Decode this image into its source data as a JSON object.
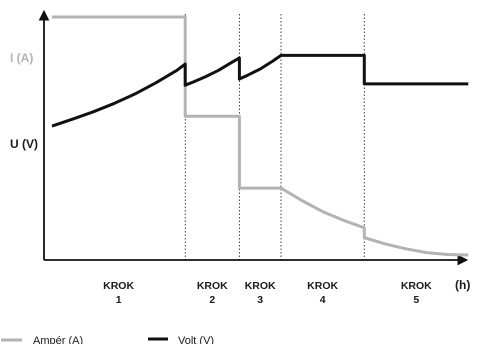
{
  "chart_data": {
    "type": "line",
    "xlabel": "(h)",
    "y_axis_labels": {
      "current": "I (A)",
      "voltage": "U (V)"
    },
    "steps": [
      {
        "label": "KROK",
        "number": "1",
        "x_start": 0.0,
        "x_end": 3.2
      },
      {
        "label": "KROK",
        "number": "2",
        "x_start": 3.2,
        "x_end": 4.5
      },
      {
        "label": "KROK",
        "number": "3",
        "x_start": 4.5,
        "x_end": 5.5
      },
      {
        "label": "KROK",
        "number": "4",
        "x_start": 5.5,
        "x_end": 7.5
      },
      {
        "label": "KROK",
        "number": "5",
        "x_start": 7.5,
        "x_end": 10.0
      }
    ],
    "xlim": [
      0,
      10.4
    ],
    "ylim": [
      0,
      10
    ],
    "series": [
      {
        "name": "Ampér (A)",
        "color": "#b3b3b3",
        "points": [
          [
            0,
            9.8
          ],
          [
            3.2,
            9.8
          ],
          [
            3.2,
            5.8
          ],
          [
            4.5,
            5.8
          ],
          [
            4.5,
            2.9
          ],
          [
            5.5,
            2.9
          ],
          [
            6,
            2.4
          ],
          [
            6.5,
            1.95
          ],
          [
            7,
            1.6
          ],
          [
            7.5,
            1.3
          ],
          [
            7.5,
            0.9
          ],
          [
            8,
            0.65
          ],
          [
            8.5,
            0.45
          ],
          [
            9,
            0.3
          ],
          [
            9.5,
            0.22
          ],
          [
            10,
            0.2
          ]
        ]
      },
      {
        "name": "Volt (V)",
        "color": "#111111",
        "points": [
          [
            0,
            5.4
          ],
          [
            0.5,
            5.68
          ],
          [
            1,
            5.98
          ],
          [
            1.5,
            6.32
          ],
          [
            2,
            6.7
          ],
          [
            2.5,
            7.15
          ],
          [
            3,
            7.65
          ],
          [
            3.2,
            7.9
          ],
          [
            3.2,
            7.05
          ],
          [
            3.4,
            7.18
          ],
          [
            3.7,
            7.4
          ],
          [
            4,
            7.65
          ],
          [
            4.3,
            7.95
          ],
          [
            4.5,
            8.15
          ],
          [
            4.5,
            7.3
          ],
          [
            4.7,
            7.45
          ],
          [
            5,
            7.7
          ],
          [
            5.3,
            8.02
          ],
          [
            5.5,
            8.25
          ],
          [
            7.5,
            8.25
          ],
          [
            7.5,
            7.1
          ],
          [
            10,
            7.1
          ]
        ]
      }
    ],
    "grid": false,
    "legend_position": "bottom-left"
  }
}
